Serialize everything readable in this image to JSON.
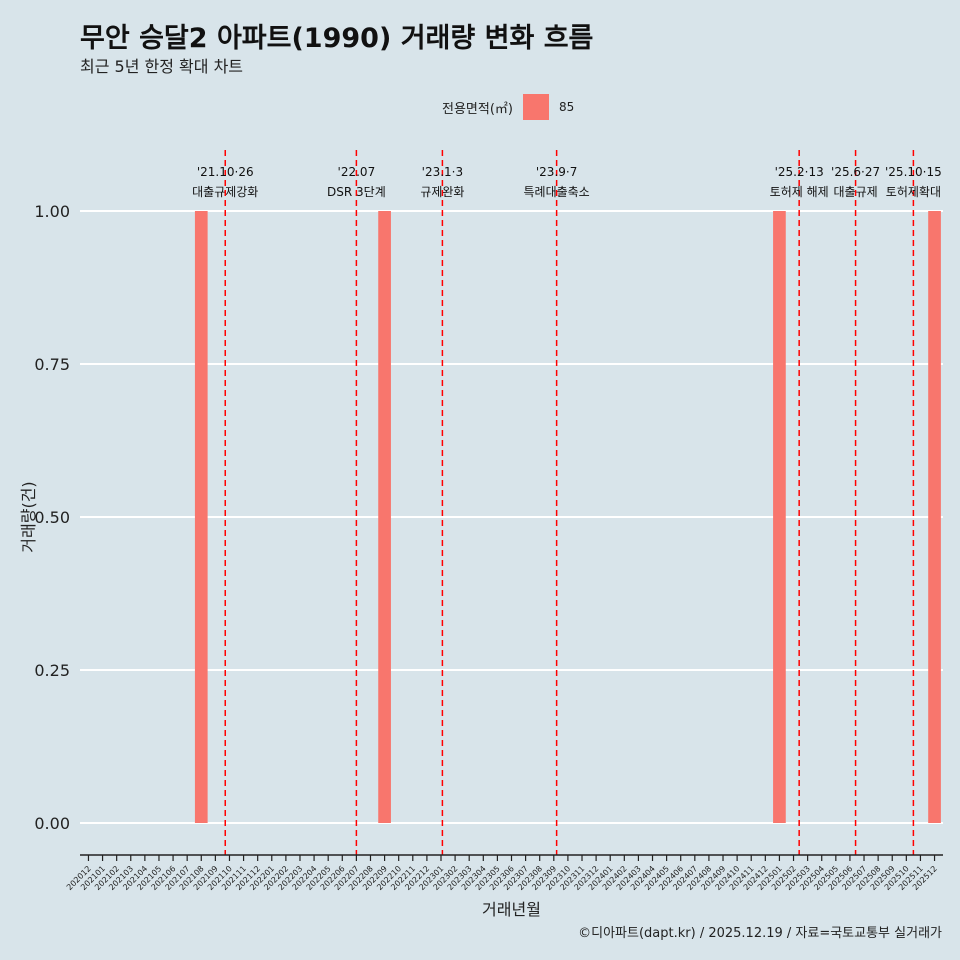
{
  "title": "무안 승달2 아파트(1990) 거래량 변화 흐름",
  "subtitle": "최근 5년 한정 확대 차트",
  "legend": {
    "title": "전용면적(㎡)",
    "item": "85"
  },
  "caption": "©디아파트(dapt.kr) / 2025.12.19 / 자료=국토교통부 실거래가",
  "colors": {
    "bar": "#f8766d",
    "background": "#d8e4ea",
    "grid": "#ffffff",
    "event_line": "#ff0000"
  },
  "chart_data": {
    "type": "bar",
    "title": "무안 승달2 아파트(1990) 거래량 변화 흐름",
    "xlabel": "거래년월",
    "ylabel": "거래량(건)",
    "ylim": [
      0,
      1
    ],
    "yticks": [
      "0.00",
      "0.25",
      "0.50",
      "0.75",
      "1.00"
    ],
    "categories": [
      "202012",
      "202101",
      "202102",
      "202103",
      "202104",
      "202105",
      "202106",
      "202107",
      "202108",
      "202109",
      "202110",
      "202111",
      "202112",
      "202201",
      "202202",
      "202203",
      "202204",
      "202205",
      "202206",
      "202207",
      "202208",
      "202209",
      "202210",
      "202211",
      "202212",
      "202301",
      "202302",
      "202303",
      "202304",
      "202305",
      "202306",
      "202307",
      "202308",
      "202309",
      "202310",
      "202311",
      "202312",
      "202401",
      "202402",
      "202403",
      "202404",
      "202405",
      "202406",
      "202407",
      "202408",
      "202409",
      "202410",
      "202411",
      "202412",
      "202501",
      "202502",
      "202503",
      "202504",
      "202505",
      "202506",
      "202507",
      "202508",
      "202509",
      "202510",
      "202511",
      "202512"
    ],
    "series": [
      {
        "name": "85",
        "values": [
          0,
          0,
          0,
          0,
          0,
          0,
          0,
          0,
          1,
          0,
          0,
          0,
          0,
          0,
          0,
          0,
          0,
          0,
          0,
          0,
          0,
          1,
          0,
          0,
          0,
          0,
          0,
          0,
          0,
          0,
          0,
          0,
          0,
          0,
          0,
          0,
          0,
          0,
          0,
          0,
          0,
          0,
          0,
          0,
          0,
          0,
          0,
          0,
          0,
          1,
          0,
          0,
          0,
          0,
          0,
          0,
          0,
          0,
          0,
          0,
          1
        ]
      }
    ],
    "events": [
      {
        "date": "'21.10·26",
        "label": "대출규제강화",
        "x": 9.7
      },
      {
        "date": "'22.07",
        "label": "DSR 3단계",
        "x": 19.0
      },
      {
        "date": "'23.1·3",
        "label": "규제완화",
        "x": 25.1
      },
      {
        "date": "'23.9·7",
        "label": "특례대출축소",
        "x": 33.2
      },
      {
        "date": "'25.2·13",
        "label": "토허제 해제",
        "x": 50.4
      },
      {
        "date": "'25.6·27",
        "label": "대출규제",
        "x": 54.4
      },
      {
        "date": "'25.10·15",
        "label": "토허제확대",
        "x": 58.5
      }
    ]
  }
}
